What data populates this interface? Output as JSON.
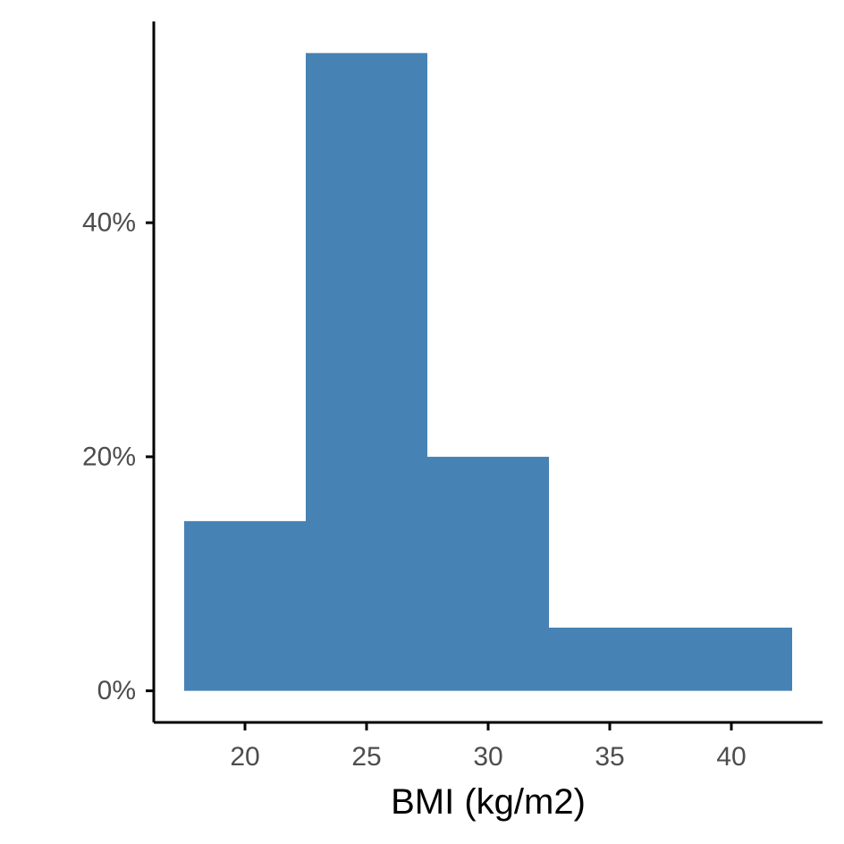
{
  "chart_data": {
    "type": "bar",
    "subtype": "histogram",
    "title": "",
    "xlabel": "BMI (kg/m2)",
    "ylabel": "",
    "bins": [
      {
        "start": 17.5,
        "end": 22.5,
        "value": 14.5
      },
      {
        "start": 22.5,
        "end": 27.5,
        "value": 54.5
      },
      {
        "start": 27.5,
        "end": 32.5,
        "value": 20.0
      },
      {
        "start": 32.5,
        "end": 42.5,
        "value": 5.4
      }
    ],
    "y_unit": "percent",
    "xlim": [
      16.25,
      43.75
    ],
    "ylim": [
      -2.7,
      57.2
    ],
    "x_ticks": [
      {
        "value": 20,
        "label": "20"
      },
      {
        "value": 25,
        "label": "25"
      },
      {
        "value": 30,
        "label": "30"
      },
      {
        "value": 35,
        "label": "35"
      },
      {
        "value": 40,
        "label": "40"
      }
    ],
    "y_ticks": [
      {
        "value": 0,
        "label": "0%"
      },
      {
        "value": 20,
        "label": "20%"
      },
      {
        "value": 40,
        "label": "40%"
      }
    ],
    "grid": false,
    "legend": "none",
    "colors": {
      "bar_fill": "#4682B4",
      "axis": "#000000",
      "tick_label": "#4d4d4d",
      "background": "#ffffff"
    }
  }
}
